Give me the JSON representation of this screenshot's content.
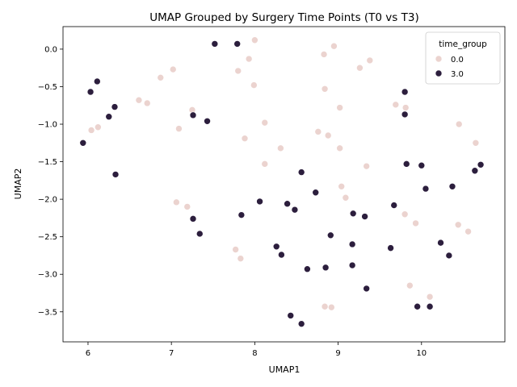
{
  "chart_data": {
    "type": "scatter",
    "title": "UMAP Grouped by Surgery Time Points (T0 vs T3)",
    "xlabel": "UMAP1",
    "ylabel": "UMAP2",
    "xlim": [
      5.7,
      11.0
    ],
    "ylim": [
      -3.9,
      0.3
    ],
    "xticks": [
      6,
      7,
      8,
      9,
      10
    ],
    "yticks": [
      0.0,
      -0.5,
      -1.0,
      -1.5,
      -2.0,
      -2.5,
      -3.0,
      -3.5
    ],
    "xtick_labels": [
      "6",
      "7",
      "8",
      "9",
      "10"
    ],
    "ytick_labels": [
      "0.0",
      "−0.5",
      "−1.0",
      "−1.5",
      "−2.0",
      "−2.5",
      "−3.0",
      "−3.5"
    ],
    "grid": false,
    "legend": {
      "title": "time_group",
      "position": "top-right",
      "entries": [
        {
          "label": "0.0",
          "color": "#ebd3cf"
        },
        {
          "label": "3.0",
          "color": "#2c1e3d"
        }
      ]
    },
    "series": [
      {
        "name": "0.0",
        "color": "#ebd3cf",
        "points": [
          [
            8.0,
            0.12
          ],
          [
            8.95,
            0.04
          ],
          [
            8.83,
            -0.07
          ],
          [
            7.93,
            -0.13
          ],
          [
            9.38,
            -0.15
          ],
          [
            7.8,
            -0.29
          ],
          [
            9.26,
            -0.25
          ],
          [
            7.02,
            -0.27
          ],
          [
            6.87,
            -0.38
          ],
          [
            7.99,
            -0.48
          ],
          [
            8.84,
            -0.53
          ],
          [
            6.61,
            -0.68
          ],
          [
            6.71,
            -0.72
          ],
          [
            9.02,
            -0.78
          ],
          [
            9.69,
            -0.74
          ],
          [
            9.81,
            -0.78
          ],
          [
            7.25,
            -0.81
          ],
          [
            8.12,
            -0.98
          ],
          [
            6.12,
            -1.04
          ],
          [
            6.04,
            -1.08
          ],
          [
            7.09,
            -1.06
          ],
          [
            8.76,
            -1.1
          ],
          [
            8.88,
            -1.15
          ],
          [
            10.45,
            -1.0
          ],
          [
            7.88,
            -1.19
          ],
          [
            8.31,
            -1.32
          ],
          [
            9.02,
            -1.32
          ],
          [
            10.65,
            -1.25
          ],
          [
            8.12,
            -1.53
          ],
          [
            9.34,
            -1.56
          ],
          [
            9.04,
            -1.83
          ],
          [
            9.09,
            -1.98
          ],
          [
            7.06,
            -2.04
          ],
          [
            7.19,
            -2.1
          ],
          [
            9.8,
            -2.2
          ],
          [
            9.93,
            -2.32
          ],
          [
            10.44,
            -2.34
          ],
          [
            10.56,
            -2.43
          ],
          [
            7.77,
            -2.67
          ],
          [
            7.83,
            -2.79
          ],
          [
            9.86,
            -3.15
          ],
          [
            10.1,
            -3.3
          ],
          [
            8.84,
            -3.43
          ],
          [
            8.92,
            -3.44
          ]
        ]
      },
      {
        "name": "3.0",
        "color": "#2c1e3d",
        "points": [
          [
            7.52,
            0.07
          ],
          [
            7.79,
            0.07
          ],
          [
            6.11,
            -0.43
          ],
          [
            6.03,
            -0.57
          ],
          [
            9.8,
            -0.57
          ],
          [
            6.32,
            -0.77
          ],
          [
            6.25,
            -0.9
          ],
          [
            7.26,
            -0.88
          ],
          [
            7.43,
            -0.96
          ],
          [
            9.8,
            -0.87
          ],
          [
            5.94,
            -1.25
          ],
          [
            9.82,
            -1.53
          ],
          [
            10.0,
            -1.55
          ],
          [
            10.71,
            -1.54
          ],
          [
            10.64,
            -1.62
          ],
          [
            6.33,
            -1.67
          ],
          [
            8.56,
            -1.64
          ],
          [
            10.05,
            -1.86
          ],
          [
            10.37,
            -1.83
          ],
          [
            8.73,
            -1.91
          ],
          [
            8.06,
            -2.03
          ],
          [
            8.39,
            -2.06
          ],
          [
            9.67,
            -2.08
          ],
          [
            8.48,
            -2.14
          ],
          [
            9.18,
            -2.19
          ],
          [
            9.32,
            -2.23
          ],
          [
            7.84,
            -2.21
          ],
          [
            7.26,
            -2.26
          ],
          [
            7.34,
            -2.46
          ],
          [
            8.91,
            -2.48
          ],
          [
            10.23,
            -2.58
          ],
          [
            9.17,
            -2.6
          ],
          [
            8.26,
            -2.63
          ],
          [
            9.63,
            -2.65
          ],
          [
            8.32,
            -2.74
          ],
          [
            10.33,
            -2.75
          ],
          [
            9.17,
            -2.88
          ],
          [
            8.85,
            -2.91
          ],
          [
            8.63,
            -2.93
          ],
          [
            9.34,
            -3.19
          ],
          [
            9.95,
            -3.43
          ],
          [
            10.1,
            -3.43
          ],
          [
            8.43,
            -3.55
          ],
          [
            8.56,
            -3.66
          ]
        ]
      }
    ]
  }
}
